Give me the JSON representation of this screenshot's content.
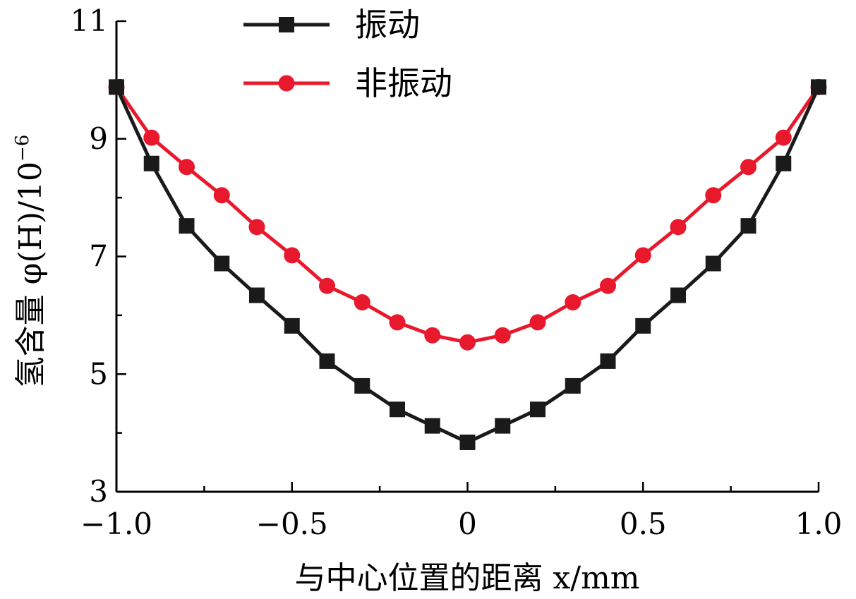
{
  "chart_data": {
    "type": "line",
    "xlabel": "与中心位置的距离 x/mm",
    "ylabel": "氢含量 φ(H)/10",
    "ylabel_sup": "−6",
    "xlim": [
      -1.0,
      1.0
    ],
    "ylim": [
      3,
      11
    ],
    "xticks": [
      -1.0,
      -0.5,
      0,
      0.5,
      1.0
    ],
    "xtick_labels": [
      "−1.0",
      "−0.5",
      "0",
      "0.5",
      "1.0"
    ],
    "yticks": [
      3,
      5,
      7,
      9,
      11
    ],
    "ytick_labels": [
      "3",
      "5",
      "7",
      "9",
      "11"
    ],
    "grid": false,
    "legend_position": "top-center",
    "x": [
      -1.0,
      -0.9,
      -0.8,
      -0.7,
      -0.6,
      -0.5,
      -0.4,
      -0.3,
      -0.2,
      -0.1,
      0.0,
      0.1,
      0.2,
      0.3,
      0.4,
      0.5,
      0.6,
      0.7,
      0.8,
      0.9,
      1.0
    ],
    "series": [
      {
        "name": "振动",
        "color": "#1a1a1a",
        "marker": "square",
        "values": [
          9.88,
          8.58,
          7.52,
          6.88,
          6.34,
          5.82,
          5.22,
          4.8,
          4.4,
          4.12,
          3.84,
          4.12,
          4.4,
          4.8,
          5.22,
          5.82,
          6.34,
          6.88,
          7.52,
          8.58,
          9.88
        ]
      },
      {
        "name": "非振动",
        "color": "#e8192c",
        "marker": "circle",
        "values": [
          9.88,
          9.02,
          8.52,
          8.04,
          7.5,
          7.02,
          6.5,
          6.22,
          5.88,
          5.66,
          5.54,
          5.66,
          5.88,
          6.22,
          6.5,
          7.02,
          7.5,
          8.04,
          8.52,
          9.02,
          9.88
        ]
      }
    ]
  }
}
